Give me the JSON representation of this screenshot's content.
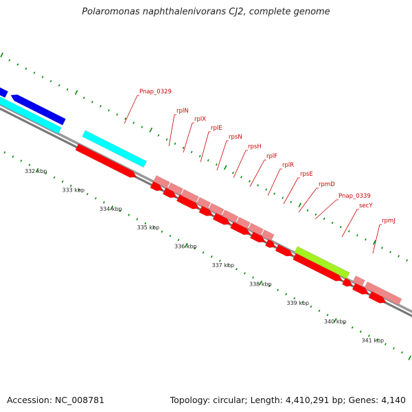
{
  "title": "Polaromonas naphthalenivorans CJ2, complete genome",
  "footer": {
    "accession": "Accession: NC_008781",
    "summary": "Topology: circular; Length: 4,410,291 bp; Genes: 4,140"
  },
  "axis": {
    "ticks": [
      "332 kbp",
      "333 kbp",
      "334 kbp",
      "335 kbp",
      "336 kbp",
      "337 kbp",
      "338 kbp",
      "339 kbp",
      "340 kbp",
      "341 kbp"
    ]
  },
  "colors": {
    "cds_forward": "#ff0000",
    "cds_reverse_blue": "#0000ee",
    "cds_cyan": "#00ffff",
    "cds_pink": "#ee8888",
    "cds_lime": "#a4f020",
    "tick_green": "#008800",
    "backbone": "#999999"
  },
  "gene_labels": [
    {
      "name": "Pnap_0329"
    },
    {
      "name": "rplN"
    },
    {
      "name": "rplX"
    },
    {
      "name": "rplE"
    },
    {
      "name": "rpsN"
    },
    {
      "name": "rpsH"
    },
    {
      "name": "rplF"
    },
    {
      "name": "rplR"
    },
    {
      "name": "rpsE"
    },
    {
      "name": "rpmD"
    },
    {
      "name": "Pnap_0339"
    },
    {
      "name": "secY"
    },
    {
      "name": "rpmJ"
    }
  ]
}
